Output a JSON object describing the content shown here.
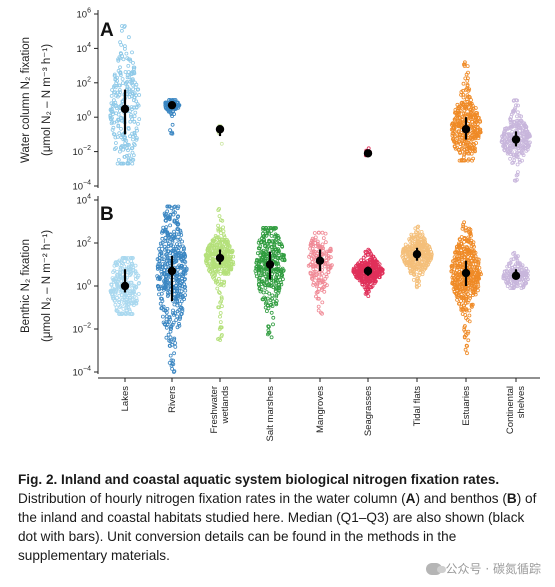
{
  "chart_data": [
    {
      "panel": "A",
      "type": "scatter",
      "subtype": "beeswarm with median and interquartile bars",
      "ylabel_line1": "Water column N₂ fixation",
      "ylabel_line2": "(μmol N₂ – N m⁻³ h⁻¹)",
      "yscale": "log",
      "ylim": [
        0.0001,
        1000000
      ],
      "y_ticks": [
        0.0001,
        0.01,
        1,
        100,
        10000,
        1000000
      ],
      "y_tick_labels": [
        [
          "10",
          "−4"
        ],
        [
          "10",
          "−2"
        ],
        [
          "10",
          "0"
        ],
        [
          "10",
          "2"
        ],
        [
          "10",
          "4"
        ],
        [
          "10",
          "6"
        ]
      ],
      "categories": [
        "Lakes",
        "Rivers",
        "Freshwater wetlands",
        "Salt marshes",
        "Mangroves",
        "Seagrasses",
        "Tidal flats",
        "Estuaries",
        "Continental shelves"
      ],
      "series": [
        {
          "category": "Lakes",
          "color": "#8ec9e8",
          "median": 3,
          "q1": 0.1,
          "q3": 40,
          "min": 0.002,
          "max": 200000,
          "n": 260
        },
        {
          "category": "Rivers",
          "color": "#3a86c2",
          "median": 5,
          "q1": 4,
          "q3": 7,
          "min": 0.1,
          "max": 10,
          "n": 90
        },
        {
          "category": "Freshwater wetlands",
          "color": "#cfe8a8",
          "median": 0.2,
          "q1": 0.08,
          "q3": 0.3,
          "min": 0.005,
          "max": 0.3,
          "n": 9
        },
        {
          "category": "Seagrasses",
          "color": "#e0305a",
          "median": 0.008,
          "q1": 0.008,
          "q3": 0.008,
          "min": 0.005,
          "max": 0.03,
          "n": 5
        },
        {
          "category": "Estuaries",
          "color": "#ef8a26",
          "median": 0.2,
          "q1": 0.05,
          "q3": 1,
          "min": 0.003,
          "max": 2000,
          "n": 320
        },
        {
          "category": "Continental shelves",
          "color": "#c8b6dc",
          "median": 0.05,
          "q1": 0.02,
          "q3": 0.15,
          "min": 0.0002,
          "max": 10,
          "n": 260
        }
      ]
    },
    {
      "panel": "B",
      "type": "scatter",
      "subtype": "beeswarm with median and interquartile bars",
      "ylabel_line1": "Benthic N₂ fixation",
      "ylabel_line2": "(μmol N₂ – N m⁻² h⁻¹)",
      "yscale": "log",
      "ylim": [
        0.0001,
        10000
      ],
      "y_ticks": [
        0.0001,
        0.01,
        1,
        100,
        10000
      ],
      "y_tick_labels": [
        [
          "10",
          "−4"
        ],
        [
          "10",
          "−2"
        ],
        [
          "10",
          "0"
        ],
        [
          "10",
          "2"
        ],
        [
          "10",
          "4"
        ]
      ],
      "categories": [
        "Lakes",
        "Rivers",
        "Freshwater wetlands",
        "Salt marshes",
        "Mangroves",
        "Seagrasses",
        "Tidal flats",
        "Estuaries",
        "Continental shelves"
      ],
      "series": [
        {
          "category": "Lakes",
          "color": "#a9d8ef",
          "median": 1,
          "q1": 0.5,
          "q3": 6,
          "min": 0.05,
          "max": 20,
          "n": 240
        },
        {
          "category": "Rivers",
          "color": "#3a86c2",
          "median": 5,
          "q1": 0.2,
          "q3": 25,
          "min": 0.0001,
          "max": 5000,
          "n": 420
        },
        {
          "category": "Freshwater wetlands",
          "color": "#b4e07a",
          "median": 20,
          "q1": 10,
          "q3": 50,
          "min": 0.002,
          "max": 5000,
          "n": 330
        },
        {
          "category": "Salt marshes",
          "color": "#2f9c3e",
          "median": 10,
          "q1": 2,
          "q3": 40,
          "min": 0.003,
          "max": 500,
          "n": 330
        },
        {
          "category": "Mangroves",
          "color": "#f08a96",
          "median": 15,
          "q1": 5,
          "q3": 50,
          "min": 0.03,
          "max": 300,
          "n": 160
        },
        {
          "category": "Seagrasses",
          "color": "#e0305a",
          "median": 5,
          "q1": 3,
          "q3": 8,
          "min": 0.3,
          "max": 50,
          "n": 360
        },
        {
          "category": "Tidal flats",
          "color": "#f4bf7a",
          "median": 30,
          "q1": 15,
          "q3": 60,
          "min": 0.8,
          "max": 600,
          "n": 330
        },
        {
          "category": "Estuaries",
          "color": "#ef8a26",
          "median": 4,
          "q1": 1,
          "q3": 15,
          "min": 0.0005,
          "max": 2000,
          "n": 420
        },
        {
          "category": "Continental shelves",
          "color": "#c8b6dc",
          "median": 3,
          "q1": 2,
          "q3": 6,
          "min": 0.8,
          "max": 40,
          "n": 170
        }
      ]
    }
  ],
  "x_tick_labels": [
    [
      "Lakes"
    ],
    [
      "Rivers"
    ],
    [
      "Freshwater",
      "wetlands"
    ],
    [
      "Salt marshes"
    ],
    [
      "Mangroves"
    ],
    [
      "Seagrasses"
    ],
    [
      "Tidal flats"
    ],
    [
      "Estuaries"
    ],
    [
      "Continental",
      "shelves"
    ]
  ],
  "caption": {
    "title": "Fig. 2. Inland and coastal aquatic system biological nitrogen fixation rates.",
    "text_1": " Distribution of hourly nitrogen fixation rates in the water column (",
    "bold_a": "A",
    "text_2": ") and benthos (",
    "bold_b": "B",
    "text_3": ") of the inland and coastal habitats studied here. Median (Q1–Q3) are also shown (black dot with bars). Unit conversion details can be found in the methods in the supplementary materials."
  },
  "watermark": {
    "text": "公众号 · 碳氮循踪",
    "icon": "wechat-icon"
  }
}
